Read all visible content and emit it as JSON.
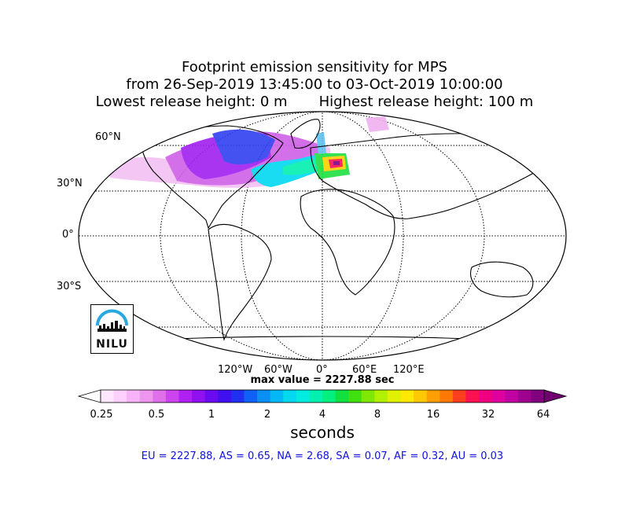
{
  "title": {
    "line1": "Footprint emission sensitivity for MPS",
    "line2": "from 26-Sep-2019 13:45:00 to 03-Oct-2019 10:00:00",
    "line3": "Lowest release height: 0 m       Highest release height: 100 m"
  },
  "map": {
    "lat_labels": [
      "60°N",
      "30°N",
      "0°",
      "30°S"
    ],
    "lon_labels": [
      "120°W",
      "60°W",
      "0°",
      "60°E",
      "120°E"
    ]
  },
  "max_value_text": "max value = 2227.88 sec",
  "colorbar": {
    "ticks": [
      "0.25",
      "0.5",
      "1",
      "2",
      "4",
      "8",
      "16",
      "32",
      "64"
    ],
    "label": "seconds",
    "colors": [
      "#ffe8ff",
      "#ffd0ff",
      "#f7b3f7",
      "#ee96ee",
      "#e070ea",
      "#cc44ee",
      "#b020f0",
      "#9010f0",
      "#6a0af0",
      "#4010f0",
      "#2030f0",
      "#1060f5",
      "#0a90f5",
      "#00b8f5",
      "#00d8f0",
      "#00ece0",
      "#00f0b0",
      "#00f080",
      "#10e040",
      "#40e010",
      "#80e800",
      "#b0f000",
      "#e0f000",
      "#ffe800",
      "#ffc800",
      "#ffa000",
      "#ff7800",
      "#ff4020",
      "#ff1050",
      "#f00080",
      "#e000a0",
      "#c000a0",
      "#a00090",
      "#800080"
    ],
    "under_color": "#ffffff",
    "over_color": "#700070"
  },
  "regions_text": "EU = 2227.88,  AS = 0.65,  NA = 2.68,  SA = 0.07,  AF = 0.32,  AU = 0.03",
  "logo": {
    "text": "NILU"
  }
}
